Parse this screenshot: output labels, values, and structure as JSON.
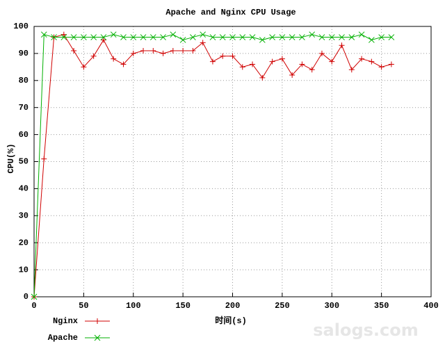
{
  "chart_data": {
    "type": "line",
    "title": "Apache and Nginx CPU Usage",
    "x_label": "时间(s)",
    "y_label": "CPU(%)",
    "x": [
      0,
      10,
      20,
      30,
      40,
      50,
      60,
      70,
      80,
      90,
      100,
      110,
      120,
      130,
      140,
      150,
      160,
      170,
      180,
      190,
      200,
      210,
      220,
      230,
      240,
      250,
      260,
      270,
      280,
      290,
      300,
      310,
      320,
      330,
      340,
      350,
      360
    ],
    "series": [
      {
        "name": "Nginx",
        "color": "#d00000",
        "marker": "plus",
        "values": [
          0,
          51,
          96,
          97,
          91,
          85,
          89,
          95,
          88,
          86,
          90,
          91,
          91,
          90,
          91,
          91,
          91,
          94,
          87,
          89,
          89,
          85,
          86,
          81,
          87,
          88,
          82,
          86,
          84,
          90,
          87,
          93,
          84,
          88,
          87,
          85,
          86
        ]
      },
      {
        "name": "Apache",
        "color": "#00b000",
        "marker": "cross",
        "values": [
          0,
          97,
          96,
          96,
          96,
          96,
          96,
          96,
          97,
          96,
          96,
          96,
          96,
          96,
          97,
          95,
          96,
          97,
          96,
          96,
          96,
          96,
          96,
          95,
          96,
          96,
          96,
          96,
          97,
          96,
          96,
          96,
          96,
          97,
          95,
          96,
          96
        ]
      }
    ],
    "xlim": [
      0,
      400
    ],
    "xticks": [
      0,
      50,
      100,
      150,
      200,
      250,
      300,
      350,
      400
    ],
    "ylim": [
      0,
      100
    ],
    "yticks": [
      0,
      10,
      20,
      30,
      40,
      50,
      60,
      70,
      80,
      90,
      100
    ],
    "grid": true,
    "legend": "bottom-left",
    "watermark": "salogs.com"
  }
}
